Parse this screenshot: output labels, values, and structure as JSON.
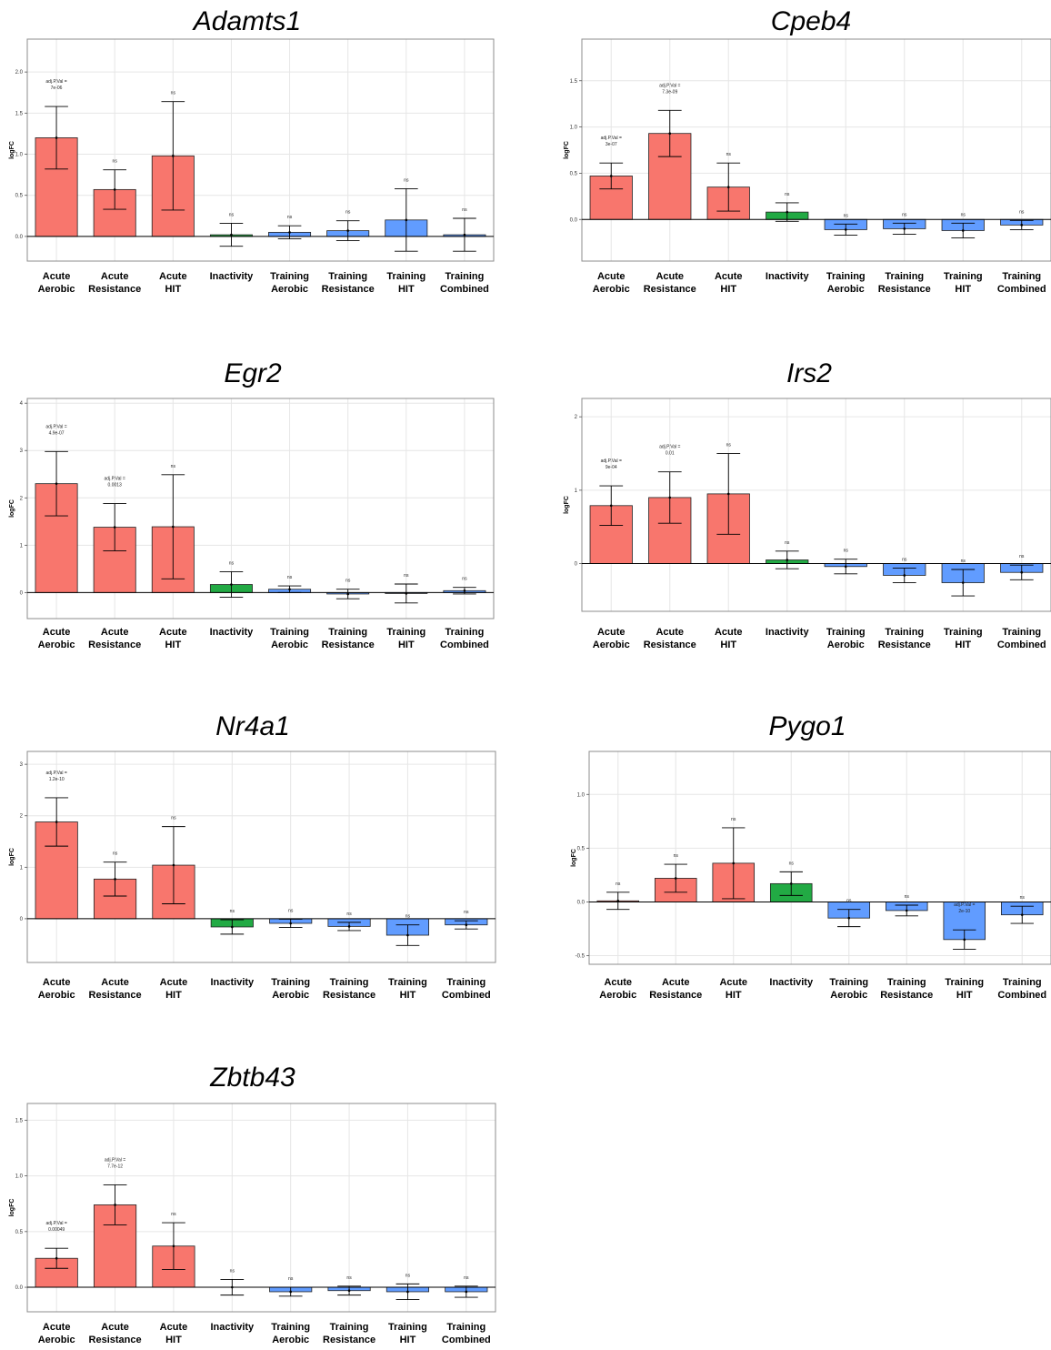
{
  "colors": {
    "acute": "#F8766D",
    "inactivity": "#22AA44",
    "training": "#619CFF"
  },
  "chart_data": [
    {
      "type": "bar",
      "title": "Adamts1",
      "ylabel": "logFC",
      "ylim": [
        -0.3,
        2.4
      ],
      "yticks": [
        "0.0",
        "0.5",
        "1.0",
        "1.5",
        "2.0"
      ],
      "categories": [
        [
          "Acute",
          "Aerobic"
        ],
        [
          "Acute",
          "Resistance"
        ],
        [
          "Acute",
          "HIT"
        ],
        [
          "Inactivity",
          ""
        ],
        [
          "Training",
          "Aerobic"
        ],
        [
          "Training",
          "Resistance"
        ],
        [
          "Training",
          "HIT"
        ],
        [
          "Training",
          "Combined"
        ]
      ],
      "groups": [
        "acute",
        "acute",
        "acute",
        "inactivity",
        "training",
        "training",
        "training",
        "training"
      ],
      "values": [
        1.2,
        0.57,
        0.98,
        0.02,
        0.05,
        0.07,
        0.2,
        0.02
      ],
      "errors": [
        0.38,
        0.24,
        0.66,
        0.14,
        0.08,
        0.12,
        0.38,
        0.2
      ],
      "annotations": [
        [
          "adj.P.Val =",
          "7e-06"
        ],
        [
          "ns"
        ],
        [
          "ns"
        ],
        [
          "ns"
        ],
        [
          "ns"
        ],
        [
          "ns"
        ],
        [
          "ns"
        ],
        [
          "ns"
        ]
      ]
    },
    {
      "type": "bar",
      "title": "Cpeb4",
      "ylabel": "logFC",
      "ylim": [
        -0.45,
        1.95
      ],
      "yticks": [
        "0.0",
        "0.5",
        "1.0",
        "1.5"
      ],
      "categories": [
        [
          "Acute",
          "Aerobic"
        ],
        [
          "Acute",
          "Resistance"
        ],
        [
          "Acute",
          "HIT"
        ],
        [
          "Inactivity",
          ""
        ],
        [
          "Training",
          "Aerobic"
        ],
        [
          "Training",
          "Resistance"
        ],
        [
          "Training",
          "HIT"
        ],
        [
          "Training",
          "Combined"
        ]
      ],
      "groups": [
        "acute",
        "acute",
        "acute",
        "inactivity",
        "training",
        "training",
        "training",
        "training"
      ],
      "values": [
        0.47,
        0.93,
        0.35,
        0.08,
        -0.11,
        -0.1,
        -0.12,
        -0.06
      ],
      "errors": [
        0.14,
        0.25,
        0.26,
        0.1,
        0.06,
        0.06,
        0.08,
        0.05
      ],
      "annotations": [
        [
          "adj.P.Val =",
          "3e-07"
        ],
        [
          "adj.P.Val =",
          "7.3e-09"
        ],
        [
          "ns"
        ],
        [
          "ns"
        ],
        [
          "ns"
        ],
        [
          "ns"
        ],
        [
          "ns"
        ],
        [
          "ns"
        ]
      ]
    },
    {
      "type": "bar",
      "title": "Egr2",
      "ylabel": "logFC",
      "ylim": [
        -0.55,
        4.1
      ],
      "yticks": [
        "0",
        "1",
        "2",
        "3",
        "4"
      ],
      "categories": [
        [
          "Acute",
          "Aerobic"
        ],
        [
          "Acute",
          "Resistance"
        ],
        [
          "Acute",
          "HIT"
        ],
        [
          "Inactivity",
          ""
        ],
        [
          "Training",
          "Aerobic"
        ],
        [
          "Training",
          "Resistance"
        ],
        [
          "Training",
          "HIT"
        ],
        [
          "Training",
          "Combined"
        ]
      ],
      "groups": [
        "acute",
        "acute",
        "acute",
        "inactivity",
        "training",
        "training",
        "training",
        "training"
      ],
      "values": [
        2.3,
        1.38,
        1.39,
        0.17,
        0.07,
        -0.03,
        -0.02,
        0.04
      ],
      "errors": [
        0.68,
        0.5,
        1.1,
        0.27,
        0.07,
        0.1,
        0.2,
        0.07
      ],
      "annotations": [
        [
          "adj.P.Val =",
          "4.9e-07"
        ],
        [
          "adj.P.Val =",
          "0.0013"
        ],
        [
          "ns"
        ],
        [
          "ns"
        ],
        [
          "ns"
        ],
        [
          "ns"
        ],
        [
          "ns"
        ],
        [
          "ns"
        ]
      ]
    },
    {
      "type": "bar",
      "title": "Irs2",
      "ylabel": "logFC",
      "ylim": [
        -0.65,
        2.25
      ],
      "yticks": [
        "0",
        "1",
        "2"
      ],
      "categories": [
        [
          "Acute",
          "Aerobic"
        ],
        [
          "Acute",
          "Resistance"
        ],
        [
          "Acute",
          "HIT"
        ],
        [
          "Inactivity",
          ""
        ],
        [
          "Training",
          "Aerobic"
        ],
        [
          "Training",
          "Resistance"
        ],
        [
          "Training",
          "HIT"
        ],
        [
          "Training",
          "Combined"
        ]
      ],
      "groups": [
        "acute",
        "acute",
        "acute",
        "inactivity",
        "training",
        "training",
        "training",
        "training"
      ],
      "values": [
        0.79,
        0.9,
        0.95,
        0.05,
        -0.04,
        -0.16,
        -0.26,
        -0.12
      ],
      "errors": [
        0.27,
        0.35,
        0.55,
        0.12,
        0.1,
        0.1,
        0.18,
        0.1
      ],
      "annotations": [
        [
          "adj.P.Val =",
          "9e-04"
        ],
        [
          "adj.P.Val =",
          "0.01"
        ],
        [
          "ns"
        ],
        [
          "ns"
        ],
        [
          "ns"
        ],
        [
          "ns"
        ],
        [
          "ns"
        ],
        [
          "ns"
        ]
      ]
    },
    {
      "type": "bar",
      "title": "Nr4a1",
      "ylabel": "logFC",
      "ylim": [
        -0.85,
        3.25
      ],
      "yticks": [
        "0",
        "1",
        "2",
        "3"
      ],
      "categories": [
        [
          "Acute",
          "Aerobic"
        ],
        [
          "Acute",
          "Resistance"
        ],
        [
          "Acute",
          "HIT"
        ],
        [
          "Inactivity",
          ""
        ],
        [
          "Training",
          "Aerobic"
        ],
        [
          "Training",
          "Resistance"
        ],
        [
          "Training",
          "HIT"
        ],
        [
          "Training",
          "Combined"
        ]
      ],
      "groups": [
        "acute",
        "acute",
        "acute",
        "inactivity",
        "training",
        "training",
        "training",
        "training"
      ],
      "values": [
        1.88,
        0.77,
        1.04,
        -0.16,
        -0.09,
        -0.15,
        -0.32,
        -0.12
      ],
      "errors": [
        0.47,
        0.33,
        0.75,
        0.14,
        0.08,
        0.08,
        0.2,
        0.08
      ],
      "annotations": [
        [
          "adj.P.Val =",
          "1.2e-10"
        ],
        [
          "ns"
        ],
        [
          "ns"
        ],
        [
          "ns"
        ],
        [
          "ns"
        ],
        [
          "ns"
        ],
        [
          "ns"
        ],
        [
          "ns"
        ]
      ]
    },
    {
      "type": "bar",
      "title": "Pygo1",
      "ylabel": "logFC",
      "ylim": [
        -0.58,
        1.4
      ],
      "yticks": [
        "-0.5",
        "0.0",
        "0.5",
        "1.0"
      ],
      "categories": [
        [
          "Acute",
          "Aerobic"
        ],
        [
          "Acute",
          "Resistance"
        ],
        [
          "Acute",
          "HIT"
        ],
        [
          "Inactivity",
          ""
        ],
        [
          "Training",
          "Aerobic"
        ],
        [
          "Training",
          "Resistance"
        ],
        [
          "Training",
          "HIT"
        ],
        [
          "Training",
          "Combined"
        ]
      ],
      "groups": [
        "acute",
        "acute",
        "acute",
        "inactivity",
        "training",
        "training",
        "training",
        "training"
      ],
      "values": [
        0.01,
        0.22,
        0.36,
        0.17,
        -0.15,
        -0.08,
        -0.35,
        -0.12
      ],
      "errors": [
        0.08,
        0.13,
        0.33,
        0.11,
        0.08,
        0.05,
        0.09,
        0.08
      ],
      "annotations": [
        [
          "ns"
        ],
        [
          "ns"
        ],
        [
          "ns"
        ],
        [
          "ns"
        ],
        [
          "ns"
        ],
        [
          "ns"
        ],
        [
          "adj.P.Val =",
          "2e-10"
        ],
        [
          "ns"
        ]
      ]
    },
    {
      "type": "bar",
      "title": "Zbtb43",
      "ylabel": "logFC",
      "ylim": [
        -0.22,
        1.65
      ],
      "yticks": [
        "0.0",
        "0.5",
        "1.0",
        "1.5"
      ],
      "categories": [
        [
          "Acute",
          "Aerobic"
        ],
        [
          "Acute",
          "Resistance"
        ],
        [
          "Acute",
          "HIT"
        ],
        [
          "Inactivity",
          ""
        ],
        [
          "Training",
          "Aerobic"
        ],
        [
          "Training",
          "Resistance"
        ],
        [
          "Training",
          "HIT"
        ],
        [
          "Training",
          "Combined"
        ]
      ],
      "groups": [
        "acute",
        "acute",
        "acute",
        "none",
        "training",
        "training",
        "training",
        "training"
      ],
      "values": [
        0.26,
        0.74,
        0.37,
        0.0,
        -0.04,
        -0.03,
        -0.04,
        -0.04
      ],
      "errors": [
        0.09,
        0.18,
        0.21,
        0.07,
        0.04,
        0.04,
        0.07,
        0.05
      ],
      "annotations": [
        [
          "adj.P.Val =",
          "0.00049"
        ],
        [
          "adj.P.Val =",
          "7.7e-12"
        ],
        [
          "ns"
        ],
        [
          "ns"
        ],
        [
          "ns"
        ],
        [
          "ns"
        ],
        [
          "ns"
        ],
        [
          "ns"
        ]
      ]
    }
  ]
}
